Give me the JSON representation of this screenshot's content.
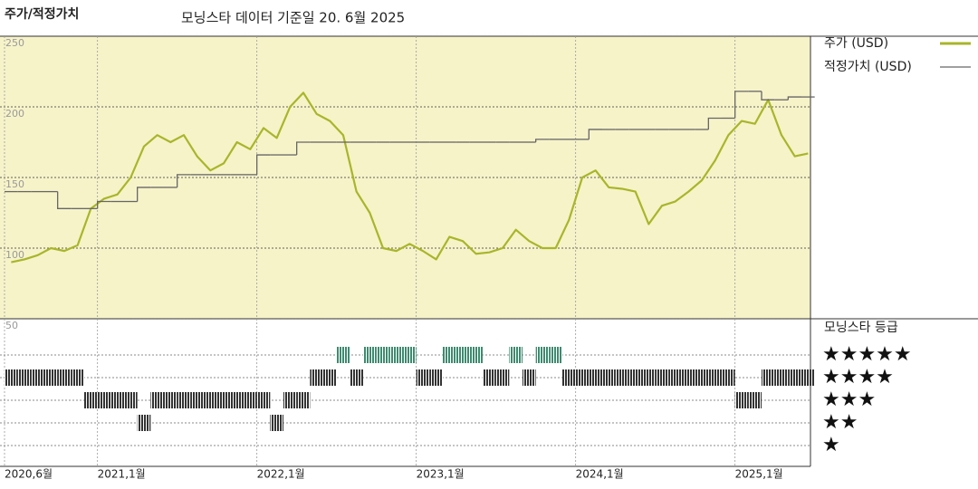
{
  "chart_data": {
    "type": "line",
    "title": "주가/적정가치",
    "subtitle": "모닝스타 데이터 기준일 20. 6월 2025",
    "x": [
      "2020-06",
      "2020-07",
      "2020-08",
      "2020-09",
      "2020-10",
      "2020-11",
      "2020-12",
      "2021-01",
      "2021-02",
      "2021-03",
      "2021-04",
      "2021-05",
      "2021-06",
      "2021-07",
      "2021-08",
      "2021-09",
      "2021-10",
      "2021-11",
      "2021-12",
      "2022-01",
      "2022-02",
      "2022-03",
      "2022-04",
      "2022-05",
      "2022-06",
      "2022-07",
      "2022-08",
      "2022-09",
      "2022-10",
      "2022-11",
      "2022-12",
      "2023-01",
      "2023-02",
      "2023-03",
      "2023-04",
      "2023-05",
      "2023-06",
      "2023-07",
      "2023-08",
      "2023-09",
      "2023-10",
      "2023-11",
      "2023-12",
      "2024-01",
      "2024-02",
      "2024-03",
      "2024-04",
      "2024-05",
      "2024-06",
      "2024-07",
      "2024-08",
      "2024-09",
      "2024-10",
      "2024-11",
      "2024-12",
      "2025-01",
      "2025-02",
      "2025-03",
      "2025-04",
      "2025-05",
      "2025-06"
    ],
    "series": [
      {
        "name": "주가 (USD)",
        "color": "#a9b52a",
        "values": [
          90,
          92,
          95,
          100,
          98,
          102,
          128,
          135,
          138,
          150,
          172,
          180,
          175,
          180,
          165,
          155,
          160,
          175,
          170,
          185,
          178,
          200,
          210,
          195,
          190,
          180,
          140,
          125,
          100,
          98,
          103,
          98,
          92,
          108,
          105,
          96,
          97,
          100,
          113,
          105,
          100,
          100,
          120,
          150,
          155,
          143,
          142,
          140,
          117,
          130,
          133,
          140,
          148,
          162,
          180,
          190,
          188,
          205,
          180,
          165,
          167
        ]
      },
      {
        "name": "적정가치 (USD)",
        "color": "#666666",
        "step": true,
        "values": [
          140,
          140,
          140,
          140,
          128,
          128,
          128,
          133,
          133,
          133,
          143,
          143,
          143,
          152,
          152,
          152,
          152,
          152,
          152,
          166,
          166,
          166,
          175,
          175,
          175,
          175,
          175,
          175,
          175,
          175,
          175,
          175,
          175,
          175,
          175,
          175,
          175,
          175,
          175,
          175,
          177,
          177,
          177,
          177,
          184,
          184,
          184,
          184,
          184,
          184,
          184,
          184,
          184,
          192,
          192,
          211,
          211,
          205,
          205,
          207,
          207
        ]
      }
    ],
    "ylim": [
      50,
      250
    ],
    "yticks": [
      50,
      100,
      150,
      200,
      250
    ],
    "xticks": [
      {
        "value": "2020-06",
        "label": "2020,6월"
      },
      {
        "value": "2021-01",
        "label": "2021,1월"
      },
      {
        "value": "2022-01",
        "label": "2022,1월"
      },
      {
        "value": "2023-01",
        "label": "2023,1월"
      },
      {
        "value": "2024-01",
        "label": "2024,1월"
      },
      {
        "value": "2025-01",
        "label": "2025,1월"
      }
    ],
    "grid": true,
    "background": "#f6f3c9",
    "rating": {
      "title": "모닝스타 등급",
      "color": "#333333",
      "highlight_color": "#3f8a70",
      "levels": [
        {
          "value": 5,
          "label": "★★★★★"
        },
        {
          "value": 4,
          "label": "★★★★"
        },
        {
          "value": 3,
          "label": "★★★"
        },
        {
          "value": 2,
          "label": "★★"
        },
        {
          "value": 1,
          "label": "★"
        }
      ],
      "values": [
        4,
        4,
        4,
        4,
        4,
        4,
        3,
        3,
        3,
        3,
        2,
        3,
        3,
        3,
        3,
        3,
        3,
        3,
        3,
        3,
        2,
        3,
        3,
        4,
        4,
        5,
        4,
        5,
        5,
        5,
        5,
        4,
        4,
        5,
        5,
        5,
        4,
        4,
        5,
        4,
        5,
        5,
        4,
        4,
        4,
        4,
        4,
        4,
        4,
        4,
        4,
        4,
        4,
        4,
        4,
        3,
        3,
        4,
        4,
        4,
        4
      ]
    }
  }
}
